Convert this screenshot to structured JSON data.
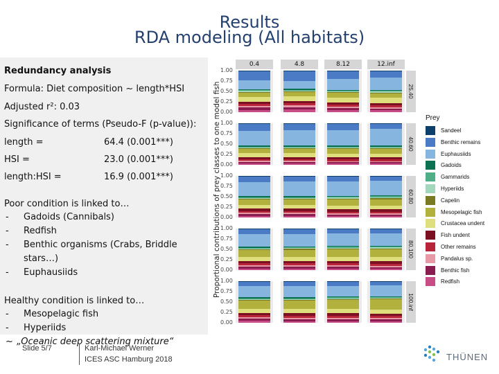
{
  "title_line1": "Results",
  "title_line2": "RDA modeling (All habitats)",
  "left": {
    "heading": "Redundancy analysis",
    "formula": "Formula: Diet composition ~ length*HSI",
    "adjusted": "Adjusted r²: 0.03",
    "significance": "Significance of terms (Pseudo-F (p-value)):",
    "terms": [
      {
        "name": "length =",
        "value": "64.4 (0.001***)"
      },
      {
        "name": "HSI =",
        "value": "23.0 (0.001***)"
      },
      {
        "name": "length:HSI =",
        "value": "16.9 (0.001***)"
      }
    ],
    "poor_heading": "Poor condition is linked to…",
    "poor_items": [
      [
        "-",
        "Gadoids (Cannibals)"
      ],
      [
        "-",
        "Redfish"
      ],
      [
        "-",
        "Benthic organisms (Crabs, Briddle"
      ],
      [
        "",
        "stars…)"
      ],
      [
        "-",
        "Euphausiids"
      ]
    ],
    "healthy_heading": "Healthy condition is linked to…",
    "healthy_items": [
      [
        "-",
        "Mesopelagic fish"
      ],
      [
        "-",
        "Hyperiids"
      ],
      [
        "~",
        "„Oceanic deep scattering mixture“"
      ]
    ]
  },
  "footer": {
    "slide": "Slide 5/7",
    "author": "Karl-Michael Werner",
    "event": "ICES ASC Hamburg 2018",
    "logo_text": "THÜNEN"
  },
  "chart_data": {
    "type": "bar",
    "ylabel": "Proportional contributions of prey classes to one model fish",
    "yticks": [
      "1.00",
      "0.75",
      "0.50",
      "0.25",
      "0.00"
    ],
    "ylim": [
      0,
      1
    ],
    "col_facets": [
      "0.4",
      "4.8",
      "8.12",
      "12.inf"
    ],
    "row_facets": [
      "25.40",
      "40.60",
      "60.80",
      "80.100",
      "100.inf"
    ],
    "legend_title": "Prey",
    "classes": [
      {
        "name": "Sandeel",
        "color": "#0d3f6b"
      },
      {
        "name": "Benthic remains",
        "color": "#4a7bc4"
      },
      {
        "name": "Euphausiids",
        "color": "#86b5e0"
      },
      {
        "name": "Gadoids",
        "color": "#0c7052"
      },
      {
        "name": "Gammarids",
        "color": "#4fae85"
      },
      {
        "name": "Hyperiids",
        "color": "#a3d7bc"
      },
      {
        "name": "Capelin",
        "color": "#7a7a22"
      },
      {
        "name": "Mesopelagic fish",
        "color": "#b3b13e"
      },
      {
        "name": "Crustacea undent",
        "color": "#dfe07d"
      },
      {
        "name": "Fish undent",
        "color": "#7a1022"
      },
      {
        "name": "Other remains",
        "color": "#b8253b"
      },
      {
        "name": "Pandalus sp.",
        "color": "#e79aa5"
      },
      {
        "name": "Benthic fish",
        "color": "#8a1d50"
      },
      {
        "name": "Redfish",
        "color": "#c84d87"
      }
    ],
    "panels": [
      [
        [
          [
            0.02,
            0.21,
            0.22,
            0.02,
            0.02,
            0.02,
            0.02,
            0.1,
            0.12,
            0.05,
            0.05,
            0.04,
            0.06,
            0.05
          ],
          [
            0.02,
            0.23,
            0.19,
            0.02,
            0.02,
            0.02,
            0.02,
            0.1,
            0.12,
            0.05,
            0.05,
            0.04,
            0.06,
            0.06
          ],
          [
            0.02,
            0.18,
            0.26,
            0.02,
            0.02,
            0.02,
            0.02,
            0.11,
            0.12,
            0.05,
            0.04,
            0.04,
            0.05,
            0.05
          ],
          [
            0.02,
            0.14,
            0.3,
            0.02,
            0.02,
            0.03,
            0.02,
            0.1,
            0.13,
            0.06,
            0.04,
            0.03,
            0.04,
            0.05
          ]
        ],
        [
          [
            0.02,
            0.16,
            0.36,
            0.02,
            0.02,
            0.02,
            0.02,
            0.1,
            0.09,
            0.05,
            0.04,
            0.03,
            0.04,
            0.03
          ],
          [
            0.02,
            0.15,
            0.37,
            0.02,
            0.02,
            0.02,
            0.02,
            0.1,
            0.09,
            0.05,
            0.04,
            0.03,
            0.04,
            0.03
          ],
          [
            0.02,
            0.14,
            0.38,
            0.02,
            0.02,
            0.02,
            0.02,
            0.11,
            0.09,
            0.05,
            0.04,
            0.03,
            0.03,
            0.03
          ],
          [
            0.02,
            0.12,
            0.4,
            0.02,
            0.02,
            0.02,
            0.02,
            0.11,
            0.09,
            0.05,
            0.04,
            0.03,
            0.03,
            0.03
          ]
        ],
        [
          [
            0.02,
            0.13,
            0.34,
            0.02,
            0.02,
            0.02,
            0.02,
            0.13,
            0.09,
            0.06,
            0.04,
            0.03,
            0.04,
            0.04
          ],
          [
            0.02,
            0.12,
            0.35,
            0.02,
            0.02,
            0.02,
            0.02,
            0.13,
            0.09,
            0.06,
            0.04,
            0.03,
            0.04,
            0.04
          ],
          [
            0.02,
            0.11,
            0.35,
            0.02,
            0.02,
            0.03,
            0.02,
            0.14,
            0.09,
            0.06,
            0.04,
            0.03,
            0.03,
            0.04
          ],
          [
            0.02,
            0.1,
            0.35,
            0.02,
            0.02,
            0.03,
            0.02,
            0.15,
            0.09,
            0.06,
            0.04,
            0.03,
            0.03,
            0.04
          ]
        ],
        [
          [
            0.02,
            0.12,
            0.3,
            0.02,
            0.02,
            0.02,
            0.02,
            0.16,
            0.1,
            0.06,
            0.05,
            0.03,
            0.05,
            0.03
          ],
          [
            0.02,
            0.11,
            0.3,
            0.02,
            0.02,
            0.02,
            0.02,
            0.17,
            0.1,
            0.06,
            0.05,
            0.03,
            0.05,
            0.03
          ],
          [
            0.02,
            0.1,
            0.3,
            0.02,
            0.02,
            0.02,
            0.02,
            0.18,
            0.1,
            0.06,
            0.05,
            0.03,
            0.05,
            0.03
          ],
          [
            0.02,
            0.09,
            0.3,
            0.02,
            0.02,
            0.03,
            0.02,
            0.19,
            0.1,
            0.06,
            0.05,
            0.03,
            0.04,
            0.03
          ]
        ],
        [
          [
            0.02,
            0.1,
            0.27,
            0.02,
            0.02,
            0.02,
            0.02,
            0.19,
            0.1,
            0.06,
            0.05,
            0.03,
            0.05,
            0.05
          ],
          [
            0.02,
            0.1,
            0.27,
            0.02,
            0.02,
            0.02,
            0.02,
            0.2,
            0.1,
            0.06,
            0.05,
            0.03,
            0.05,
            0.04
          ],
          [
            0.02,
            0.09,
            0.26,
            0.02,
            0.02,
            0.02,
            0.02,
            0.22,
            0.1,
            0.06,
            0.05,
            0.03,
            0.05,
            0.04
          ],
          [
            0.02,
            0.08,
            0.26,
            0.02,
            0.02,
            0.02,
            0.02,
            0.24,
            0.1,
            0.06,
            0.05,
            0.03,
            0.04,
            0.04
          ]
        ]
      ]
    ]
  }
}
